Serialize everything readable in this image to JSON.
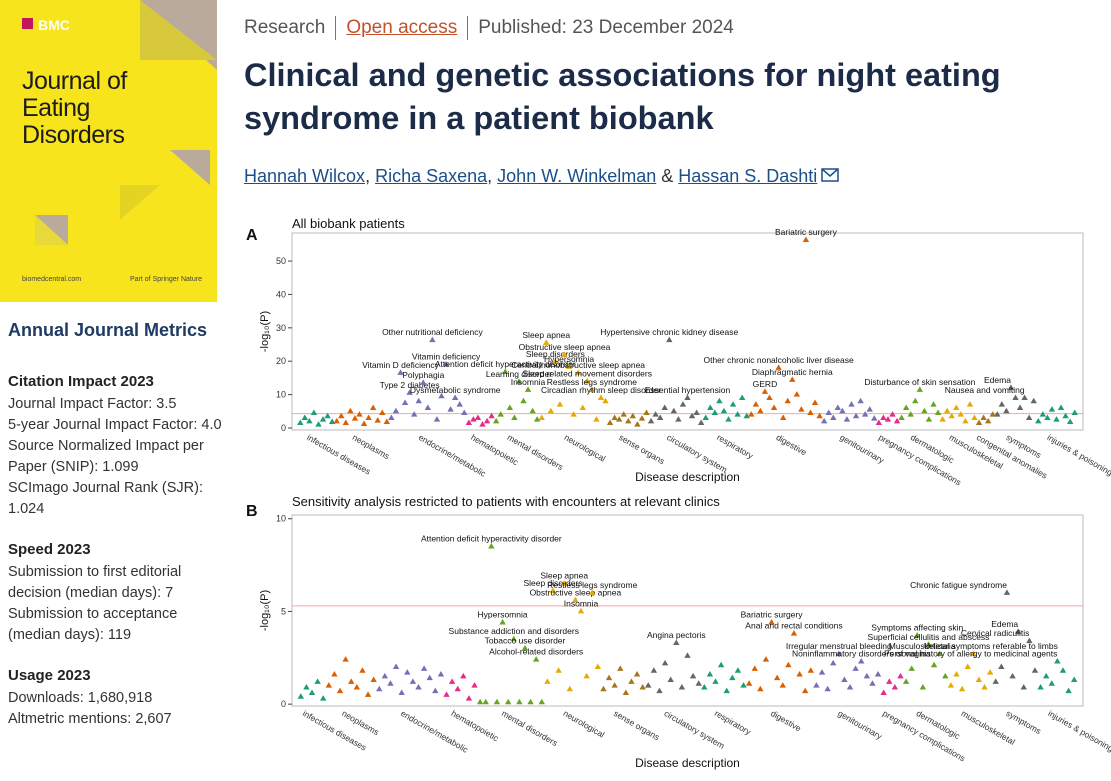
{
  "header": {
    "article_type": "Research",
    "access": "Open access",
    "published": "Published: 23 December 2024"
  },
  "title": "Clinical and genetic associations for night eating syndrome in a patient biobank",
  "authors": [
    "Hannah Wilcox",
    "Richa Saxena",
    "John W. Winkelman",
    "Hassan S. Dashti"
  ],
  "author_separators": [
    ", ",
    ", ",
    " & "
  ],
  "cover": {
    "brand": "BMC",
    "journal": "Journal of Eating Disorders",
    "site": "biomedcentral.com",
    "publisher": "Part of Springer Nature"
  },
  "sidebar": {
    "heading": "Annual Journal Metrics",
    "sections": [
      {
        "title": "Citation Impact 2023",
        "lines": [
          "Journal Impact Factor: 3.5",
          "5-year Journal Impact Factor: 4.0",
          "Source Normalized Impact per Paper (SNIP): 1.099",
          "SCImago Journal Rank (SJR): 1.024"
        ]
      },
      {
        "title": "Speed 2023",
        "lines": [
          "Submission to first editorial decision (median days): 7",
          "Submission to acceptance (median days): 119"
        ]
      },
      {
        "title": "Usage 2023",
        "lines": [
          "Downloads: 1,680,918",
          "Altmetric mentions: 2,607"
        ]
      }
    ]
  },
  "chart_data": [
    {
      "type": "scatter",
      "panel": "A",
      "title": "All biobank patients",
      "xlabel": "Disease description",
      "ylabel": "-log₁₀(P)",
      "ylim": [
        -0.6,
        58.4
      ],
      "yticks": [
        0,
        10,
        20,
        30,
        40,
        50
      ],
      "threshold": 4.3,
      "threshold_color": "#f4a6a6",
      "series": [
        {
          "name": "infectious diseases",
          "color": "#1b9e77",
          "values": [
            1.5,
            3,
            2,
            4.5,
            1,
            2.5,
            3.5,
            1.8
          ],
          "annotated": []
        },
        {
          "name": "neoplasms",
          "color": "#d95f02",
          "values": [
            2,
            3.5,
            1.5,
            5,
            2.8,
            4,
            1.2,
            3,
            6,
            2.2,
            4.5,
            1.8
          ],
          "annotated": []
        },
        {
          "name": "endocrine/metabolic",
          "color": "#7570b3",
          "values": [
            3,
            5,
            7.5,
            4,
            8,
            6,
            2.5,
            9.5,
            5.5,
            7,
            4.5
          ],
          "annotated": [
            {
              "label": "Vitamin D deficiency",
              "value": 16.5
            },
            {
              "label": "Type 2 diabetes",
              "value": 10.5
            },
            {
              "label": "Polyphagia",
              "value": 13.5
            },
            {
              "label": "Other nutritional deficiency",
              "value": 26.3
            },
            {
              "label": "Vitamin deficiency",
              "value": 19
            },
            {
              "label": "Dysmetabolic syndrome",
              "value": 9
            }
          ]
        },
        {
          "name": "hematopoietic",
          "color": "#e7298a",
          "values": [
            1.5,
            2.5,
            3,
            1,
            2,
            3.5
          ],
          "annotated": []
        },
        {
          "name": "mental disorders",
          "color": "#66a61e",
          "values": [
            2,
            4,
            6,
            3,
            8,
            5,
            2.5
          ],
          "annotated": [
            {
              "label": "Attention deficit hyperactivity disorder",
              "value": 16.8
            },
            {
              "label": "Learning disorder",
              "value": 13.8
            },
            {
              "label": "Insomnia",
              "value": 11.4
            }
          ]
        },
        {
          "name": "neurological",
          "color": "#e6ab02",
          "values": [
            3,
            5,
            7,
            4,
            6,
            2.5,
            8
          ],
          "annotated": [
            {
              "label": "Sleep apnea",
              "value": 25.5
            },
            {
              "label": "Sleep disorders",
              "value": 19.8
            },
            {
              "label": "Obstructive sleep apnea",
              "value": 21.9
            },
            {
              "label": "Hypersomnia",
              "value": 18.3
            },
            {
              "label": "Central/nonobstructive sleep apnea",
              "value": 16.5
            },
            {
              "label": "Sleep related movement disorders",
              "value": 14
            },
            {
              "label": "Restless legs syndrome",
              "value": 11.4
            },
            {
              "label": "Circadian rhythm sleep disorder",
              "value": 9
            }
          ]
        },
        {
          "name": "sense organs",
          "color": "#a6761d",
          "values": [
            1.5,
            3,
            2.5,
            4,
            2,
            3.5,
            1,
            2.8,
            4.5
          ],
          "annotated": []
        },
        {
          "name": "circulatory system",
          "color": "#666666",
          "values": [
            2,
            4,
            3,
            6,
            5,
            2.5,
            7,
            3.5,
            4.5,
            1.5
          ],
          "annotated": [
            {
              "label": "Hypertensive chronic kidney disease",
              "value": 26.3
            },
            {
              "label": "Essential hypertension",
              "value": 9
            }
          ]
        },
        {
          "name": "respiratory",
          "color": "#1b9e77",
          "values": [
            3,
            6,
            4.5,
            8,
            5,
            2.5,
            7,
            4,
            9,
            3.5
          ],
          "annotated": []
        },
        {
          "name": "digestive",
          "color": "#d95f02",
          "values": [
            4,
            7,
            5,
            9,
            6,
            3,
            8,
            10,
            5.5,
            4.5,
            7.5,
            3.5
          ],
          "annotated": [
            {
              "label": "GERD",
              "value": 10.8
            },
            {
              "label": "Other chronic nonalcoholic liver disease",
              "value": 18
            },
            {
              "label": "Diaphragmatic hernia",
              "value": 14.4
            },
            {
              "label": "Bariatric surgery",
              "value": 56.3
            }
          ]
        },
        {
          "name": "genitourinary",
          "color": "#7570b3",
          "values": [
            2,
            4.5,
            3,
            6,
            5,
            2.5,
            7,
            3.5,
            8,
            4,
            5.5,
            2.8
          ],
          "annotated": []
        },
        {
          "name": "pregnancy complications",
          "color": "#e7298a",
          "values": [
            1.5,
            3,
            2.5,
            4,
            2
          ],
          "annotated": []
        },
        {
          "name": "dermatologic",
          "color": "#66a61e",
          "values": [
            3,
            6,
            4,
            8,
            5,
            2.5,
            7,
            4.5
          ],
          "annotated": [
            {
              "label": "Disturbance of skin sensation",
              "value": 11.4
            }
          ]
        },
        {
          "name": "musculoskeletal",
          "color": "#e6ab02",
          "values": [
            2.5,
            5,
            3.5,
            6,
            4,
            2,
            7,
            3
          ],
          "annotated": []
        },
        {
          "name": "congenital anomalies",
          "color": "#a6761d",
          "values": [
            1.5,
            3,
            2,
            4
          ],
          "annotated": []
        },
        {
          "name": "symptoms",
          "color": "#666666",
          "values": [
            4,
            7,
            5,
            9,
            6,
            3,
            8
          ],
          "annotated": [
            {
              "label": "Edema",
              "value": 12
            },
            {
              "label": "Nausea and vomiting",
              "value": 9
            }
          ]
        },
        {
          "name": "injuries & poisonings",
          "color": "#1b9e77",
          "values": [
            2,
            4,
            3,
            5.5,
            2.5,
            6,
            3.5,
            1.8,
            4.5
          ],
          "annotated": []
        }
      ]
    },
    {
      "type": "scatter",
      "panel": "B",
      "title": "Sensitivity analysis restricted to patients with encounters at relevant clinics",
      "xlabel": "Disease description",
      "ylabel": "-log₁₀(P)",
      "ylim": [
        -0.1,
        10.2
      ],
      "yticks": [
        0,
        5,
        10
      ],
      "threshold": 5.3,
      "threshold_color": "#f4a6a6",
      "series": [
        {
          "name": "infectious diseases",
          "color": "#1b9e77",
          "values": [
            0.4,
            0.9,
            0.6,
            1.2,
            0.3
          ],
          "annotated": []
        },
        {
          "name": "neoplasms",
          "color": "#d95f02",
          "values": [
            1,
            1.6,
            0.7,
            2.4,
            1.2,
            0.9,
            1.8,
            0.5,
            1.3
          ],
          "annotated": []
        },
        {
          "name": "endocrine/metabolic",
          "color": "#7570b3",
          "values": [
            0.8,
            1.5,
            1.1,
            2,
            0.6,
            1.7,
            1.2,
            0.9,
            1.9,
            1.4,
            0.7,
            1.6
          ],
          "annotated": []
        },
        {
          "name": "hematopoietic",
          "color": "#e7298a",
          "values": [
            0.5,
            1.2,
            0.8,
            1.5,
            0.3,
            1
          ],
          "annotated": []
        },
        {
          "name": "mental disorders",
          "color": "#66a61e",
          "values": [
            0.1,
            0.1,
            0.1,
            0.1,
            0.1,
            0.1,
            0.1
          ],
          "annotated": [
            {
              "label": "Attention deficit hyperactivity disorder",
              "value": 8.5
            },
            {
              "label": "Hypersomnia",
              "value": 4.4
            },
            {
              "label": "Substance addiction and disorders",
              "value": 3.5
            },
            {
              "label": "Tobacco use disorder",
              "value": 3
            },
            {
              "label": "Alcohol-related disorders",
              "value": 2.4
            }
          ]
        },
        {
          "name": "neurological",
          "color": "#e6ab02",
          "values": [
            1.2,
            1.8,
            0.8,
            1.5,
            2
          ],
          "annotated": [
            {
              "label": "Sleep disorders",
              "value": 6.1
            },
            {
              "label": "Sleep apnea",
              "value": 6.5
            },
            {
              "label": "Obstructive sleep apnea",
              "value": 5.6
            },
            {
              "label": "Insomnia",
              "value": 5
            },
            {
              "label": "Restless legs syndrome",
              "value": 6
            }
          ]
        },
        {
          "name": "sense organs",
          "color": "#a6761d",
          "values": [
            0.8,
            1.4,
            1,
            1.9,
            0.6,
            1.2,
            1.6,
            0.9
          ],
          "annotated": []
        },
        {
          "name": "circulatory system",
          "color": "#666666",
          "values": [
            1,
            1.8,
            0.7,
            2.2,
            1.3,
            0.9,
            2.6,
            1.5,
            1.1
          ],
          "annotated": [
            {
              "label": "Angina pectoris",
              "value": 3.3
            }
          ]
        },
        {
          "name": "respiratory",
          "color": "#1b9e77",
          "values": [
            0.9,
            1.6,
            1.2,
            2.1,
            0.7,
            1.4,
            1.8,
            1
          ],
          "annotated": []
        },
        {
          "name": "digestive",
          "color": "#d95f02",
          "values": [
            1.1,
            1.9,
            0.8,
            2.4,
            1.4,
            1,
            2.1,
            1.6,
            0.7,
            1.8
          ],
          "annotated": [
            {
              "label": "Bariatric surgery",
              "value": 4.4
            },
            {
              "label": "Anal and rectal conditions",
              "value": 3.8
            }
          ]
        },
        {
          "name": "genitourinary",
          "color": "#7570b3",
          "values": [
            1,
            1.7,
            0.8,
            2.2,
            1.3,
            0.9,
            1.9,
            1.5,
            1.1,
            1.6
          ],
          "annotated": [
            {
              "label": "Irregular menstrual bleeding",
              "value": 2.7
            },
            {
              "label": "Noninflammatory disorders of vagina",
              "value": 2.3
            }
          ]
        },
        {
          "name": "pregnancy complications",
          "color": "#e7298a",
          "values": [
            0.6,
            1.2,
            0.9,
            1.5
          ],
          "annotated": []
        },
        {
          "name": "dermatologic",
          "color": "#66a61e",
          "values": [
            1.2,
            1.9,
            0.9,
            2.1,
            1.5
          ],
          "annotated": [
            {
              "label": "Symptoms affecting skin",
              "value": 3.7
            },
            {
              "label": "Superficial cellulitis and abscess",
              "value": 3.2
            },
            {
              "label": "Urticaria",
              "value": 2.7
            }
          ]
        },
        {
          "name": "musculoskeletal",
          "color": "#e6ab02",
          "values": [
            1,
            1.6,
            0.8,
            2,
            1.3,
            0.9,
            1.7
          ],
          "annotated": [
            {
              "label": "Musculoskeletal symptoms referable to limbs",
              "value": 2.7
            }
          ]
        },
        {
          "name": "symptoms",
          "color": "#666666",
          "values": [
            1.2,
            2,
            1.5,
            0.9,
            1.8
          ],
          "annotated": [
            {
              "label": "Chronic fatigue syndrome",
              "value": 6
            },
            {
              "label": "Edema",
              "value": 3.9
            },
            {
              "label": "Cervical radiculitis",
              "value": 3.4
            }
          ]
        },
        {
          "name": "injuries & poisonings",
          "color": "#1b9e77",
          "values": [
            0.9,
            1.5,
            1.1,
            1.8,
            0.7,
            1.3
          ],
          "annotated": [
            {
              "label": "Personal history of allergy to medicinal agents",
              "value": 2.3
            }
          ]
        }
      ]
    }
  ]
}
